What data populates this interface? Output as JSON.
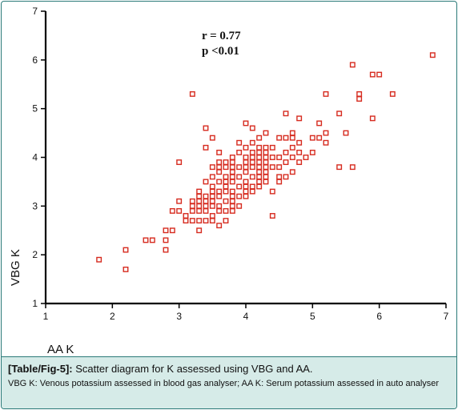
{
  "chart_data": {
    "type": "scatter",
    "xlim": [
      1,
      7
    ],
    "ylim": [
      1,
      7
    ],
    "xticks": [
      1,
      2,
      3,
      4,
      5,
      6,
      7
    ],
    "yticks": [
      1,
      2,
      3,
      4,
      5,
      6,
      7
    ],
    "xlabel": "AA K",
    "ylabel": "VBG K",
    "annotations": [
      "r = 0.77",
      "p <0.01"
    ],
    "grid": false,
    "marker": "open-square",
    "marker_color": "#d62b1f",
    "points": [
      [
        1.8,
        1.9
      ],
      [
        2.2,
        1.7
      ],
      [
        2.2,
        2.1
      ],
      [
        2.5,
        2.3
      ],
      [
        2.6,
        2.3
      ],
      [
        2.8,
        2.1
      ],
      [
        2.8,
        2.3
      ],
      [
        2.8,
        2.5
      ],
      [
        2.9,
        2.5
      ],
      [
        2.9,
        2.9
      ],
      [
        3.0,
        2.9
      ],
      [
        3.0,
        3.1
      ],
      [
        3.0,
        3.9
      ],
      [
        3.1,
        2.7
      ],
      [
        3.1,
        2.8
      ],
      [
        3.2,
        2.7
      ],
      [
        3.2,
        2.9
      ],
      [
        3.2,
        3.0
      ],
      [
        3.2,
        3.1
      ],
      [
        3.2,
        5.3
      ],
      [
        3.3,
        2.5
      ],
      [
        3.3,
        2.7
      ],
      [
        3.3,
        2.9
      ],
      [
        3.3,
        3.0
      ],
      [
        3.3,
        3.1
      ],
      [
        3.3,
        3.2
      ],
      [
        3.3,
        3.3
      ],
      [
        3.4,
        2.7
      ],
      [
        3.4,
        2.9
      ],
      [
        3.4,
        3.0
      ],
      [
        3.4,
        3.1
      ],
      [
        3.4,
        3.2
      ],
      [
        3.4,
        3.5
      ],
      [
        3.4,
        4.2
      ],
      [
        3.4,
        4.6
      ],
      [
        3.5,
        2.7
      ],
      [
        3.5,
        2.8
      ],
      [
        3.5,
        3.0
      ],
      [
        3.5,
        3.1
      ],
      [
        3.5,
        3.2
      ],
      [
        3.5,
        3.3
      ],
      [
        3.5,
        3.4
      ],
      [
        3.5,
        3.6
      ],
      [
        3.5,
        3.8
      ],
      [
        3.5,
        4.4
      ],
      [
        3.6,
        2.6
      ],
      [
        3.6,
        2.9
      ],
      [
        3.6,
        3.0
      ],
      [
        3.6,
        3.2
      ],
      [
        3.6,
        3.3
      ],
      [
        3.6,
        3.5
      ],
      [
        3.6,
        3.7
      ],
      [
        3.6,
        3.8
      ],
      [
        3.6,
        3.9
      ],
      [
        3.6,
        4.1
      ],
      [
        3.7,
        2.7
      ],
      [
        3.7,
        2.9
      ],
      [
        3.7,
        3.1
      ],
      [
        3.7,
        3.3
      ],
      [
        3.7,
        3.4
      ],
      [
        3.7,
        3.5
      ],
      [
        3.7,
        3.6
      ],
      [
        3.7,
        3.8
      ],
      [
        3.7,
        3.9
      ],
      [
        3.8,
        2.9
      ],
      [
        3.8,
        3.0
      ],
      [
        3.8,
        3.1
      ],
      [
        3.8,
        3.2
      ],
      [
        3.8,
        3.3
      ],
      [
        3.8,
        3.5
      ],
      [
        3.8,
        3.6
      ],
      [
        3.8,
        3.7
      ],
      [
        3.8,
        3.8
      ],
      [
        3.8,
        3.9
      ],
      [
        3.8,
        4.0
      ],
      [
        3.9,
        3.0
      ],
      [
        3.9,
        3.2
      ],
      [
        3.9,
        3.4
      ],
      [
        3.9,
        3.6
      ],
      [
        3.9,
        3.8
      ],
      [
        3.9,
        4.1
      ],
      [
        3.9,
        4.3
      ],
      [
        4.0,
        3.2
      ],
      [
        4.0,
        3.3
      ],
      [
        4.0,
        3.4
      ],
      [
        4.0,
        3.5
      ],
      [
        4.0,
        3.7
      ],
      [
        4.0,
        3.8
      ],
      [
        4.0,
        3.9
      ],
      [
        4.0,
        4.0
      ],
      [
        4.0,
        4.2
      ],
      [
        4.0,
        4.7
      ],
      [
        4.1,
        3.3
      ],
      [
        4.1,
        3.4
      ],
      [
        4.1,
        3.6
      ],
      [
        4.1,
        3.8
      ],
      [
        4.1,
        3.9
      ],
      [
        4.1,
        4.0
      ],
      [
        4.1,
        4.1
      ],
      [
        4.1,
        4.3
      ],
      [
        4.1,
        4.6
      ],
      [
        4.2,
        3.4
      ],
      [
        4.2,
        3.5
      ],
      [
        4.2,
        3.6
      ],
      [
        4.2,
        3.7
      ],
      [
        4.2,
        3.8
      ],
      [
        4.2,
        3.9
      ],
      [
        4.2,
        4.0
      ],
      [
        4.2,
        4.1
      ],
      [
        4.2,
        4.2
      ],
      [
        4.2,
        4.4
      ],
      [
        4.3,
        3.5
      ],
      [
        4.3,
        3.6
      ],
      [
        4.3,
        3.7
      ],
      [
        4.3,
        3.8
      ],
      [
        4.3,
        3.9
      ],
      [
        4.3,
        4.0
      ],
      [
        4.3,
        4.1
      ],
      [
        4.3,
        4.2
      ],
      [
        4.3,
        4.5
      ],
      [
        4.4,
        2.8
      ],
      [
        4.4,
        3.3
      ],
      [
        4.4,
        3.8
      ],
      [
        4.4,
        4.0
      ],
      [
        4.4,
        4.2
      ],
      [
        4.5,
        3.5
      ],
      [
        4.5,
        3.6
      ],
      [
        4.5,
        3.8
      ],
      [
        4.5,
        4.0
      ],
      [
        4.5,
        4.4
      ],
      [
        4.6,
        3.6
      ],
      [
        4.6,
        3.9
      ],
      [
        4.6,
        4.1
      ],
      [
        4.6,
        4.4
      ],
      [
        4.6,
        4.9
      ],
      [
        4.7,
        3.7
      ],
      [
        4.7,
        4.0
      ],
      [
        4.7,
        4.2
      ],
      [
        4.7,
        4.4
      ],
      [
        4.7,
        4.5
      ],
      [
        4.8,
        3.9
      ],
      [
        4.8,
        4.1
      ],
      [
        4.8,
        4.3
      ],
      [
        4.8,
        4.8
      ],
      [
        4.9,
        4.0
      ],
      [
        5.0,
        4.1
      ],
      [
        5.0,
        4.4
      ],
      [
        5.1,
        4.4
      ],
      [
        5.1,
        4.7
      ],
      [
        5.2,
        4.3
      ],
      [
        5.2,
        4.5
      ],
      [
        5.2,
        5.3
      ],
      [
        5.4,
        3.8
      ],
      [
        5.4,
        4.9
      ],
      [
        5.5,
        4.5
      ],
      [
        5.6,
        3.8
      ],
      [
        5.6,
        5.9
      ],
      [
        5.7,
        5.2
      ],
      [
        5.7,
        5.3
      ],
      [
        5.9,
        4.8
      ],
      [
        5.9,
        5.7
      ],
      [
        6.0,
        5.7
      ],
      [
        6.2,
        5.3
      ],
      [
        6.8,
        6.1
      ]
    ]
  },
  "caption": {
    "tag": "[Table/Fig-5]:",
    "title": "Scatter diagram for K assessed using VBG and AA.",
    "note": "VBG K: Venous potassium assessed in blood gas analyser; AA K: Serum potassium assessed in auto analyser"
  }
}
